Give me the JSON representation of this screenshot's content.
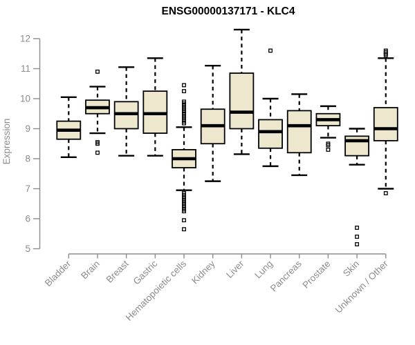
{
  "header": {
    "title": "ENSG00000137171 - KLC4"
  },
  "chart_data": {
    "type": "boxplot",
    "title": "ENSG00000137171 - KLC4",
    "xlabel": "",
    "ylabel": "Expression",
    "ylim": [
      5,
      12.4
    ],
    "yticks": [
      5,
      6,
      7,
      8,
      9,
      10,
      11,
      12
    ],
    "grid": false,
    "legend": false,
    "box_fill": "#EDE7CD",
    "box_stroke": "#000000",
    "axis_color": "#8C8C8C",
    "categories": [
      "Bladder",
      "Brain",
      "Breast",
      "Gastric",
      "Hematopoietic cells",
      "Kidney",
      "Liver",
      "Lung",
      "Pancreas",
      "Prostate",
      "Skin",
      "Unknown / Other"
    ],
    "series": [
      {
        "category": "Bladder",
        "low": 8.05,
        "q1": 8.65,
        "median": 8.95,
        "q3": 9.25,
        "high": 10.05,
        "outliers": []
      },
      {
        "category": "Brain",
        "low": 8.85,
        "q1": 9.5,
        "median": 9.7,
        "q3": 9.95,
        "high": 10.4,
        "outliers": [
          10.9,
          8.55,
          8.5,
          8.2
        ]
      },
      {
        "category": "Breast",
        "low": 8.1,
        "q1": 9.0,
        "median": 9.5,
        "q3": 9.9,
        "high": 11.05,
        "outliers": []
      },
      {
        "category": "Gastric",
        "low": 8.1,
        "q1": 8.85,
        "median": 9.5,
        "q3": 10.25,
        "high": 11.35,
        "outliers": []
      },
      {
        "category": "Hematopoietic cells",
        "low": 6.95,
        "q1": 7.7,
        "median": 8.0,
        "q3": 8.3,
        "high": 9.05,
        "outliers": [
          10.45,
          10.25,
          9.9,
          9.84,
          9.78,
          9.72,
          9.66,
          9.6,
          9.54,
          9.48,
          9.42,
          9.36,
          9.3,
          9.24,
          9.18,
          6.85,
          6.79,
          6.73,
          6.67,
          6.61,
          6.55,
          6.49,
          6.43,
          6.37,
          6.31,
          6.25,
          5.95,
          5.65
        ]
      },
      {
        "category": "Kidney",
        "low": 7.25,
        "q1": 8.5,
        "median": 9.1,
        "q3": 9.65,
        "high": 11.1,
        "outliers": []
      },
      {
        "category": "Liver",
        "low": 8.15,
        "q1": 9.0,
        "median": 9.55,
        "q3": 10.85,
        "high": 12.3,
        "outliers": []
      },
      {
        "category": "Lung",
        "low": 7.75,
        "q1": 8.35,
        "median": 8.9,
        "q3": 9.3,
        "high": 10.0,
        "outliers": [
          11.6
        ]
      },
      {
        "category": "Pancreas",
        "low": 7.45,
        "q1": 8.2,
        "median": 9.1,
        "q3": 9.6,
        "high": 10.15,
        "outliers": []
      },
      {
        "category": "Prostate",
        "low": 8.7,
        "q1": 9.1,
        "median": 9.3,
        "q3": 9.5,
        "high": 9.75,
        "outliers": [
          8.5,
          8.45,
          8.3
        ]
      },
      {
        "category": "Skin",
        "low": 7.8,
        "q1": 8.1,
        "median": 8.6,
        "q3": 8.75,
        "high": 9.0,
        "outliers": [
          5.7,
          5.4,
          5.15
        ]
      },
      {
        "category": "Unknown / Other",
        "low": 7.0,
        "q1": 8.6,
        "median": 9.0,
        "q3": 9.7,
        "high": 11.35,
        "outliers": [
          11.6,
          11.55,
          11.5,
          11.45,
          6.85
        ]
      }
    ]
  }
}
